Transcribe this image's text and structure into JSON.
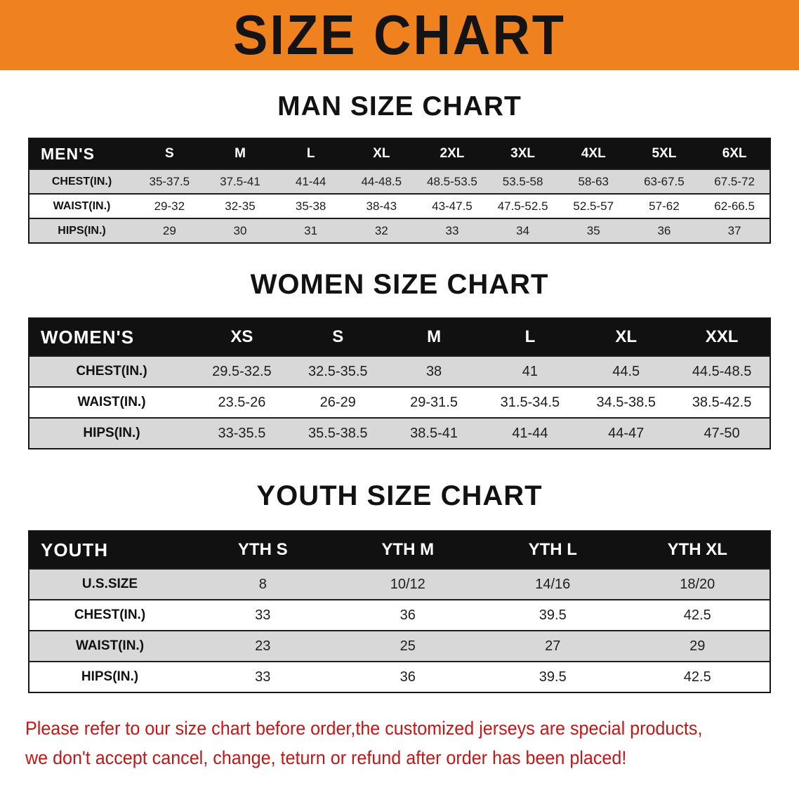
{
  "banner": {
    "title": "SIZE CHART"
  },
  "colors": {
    "banner_bg": "#f0811f",
    "header_bg": "#111111",
    "row_shade": "#d8d8d8",
    "note_red": "#c31717"
  },
  "sections": [
    {
      "key": "men",
      "heading": "MAN SIZE CHART",
      "table": {
        "corner_label": "MEN'S",
        "columns": [
          "S",
          "M",
          "L",
          "XL",
          "2XL",
          "3XL",
          "4XL",
          "5XL",
          "6XL"
        ],
        "rows": [
          {
            "label": "CHEST(IN.)",
            "values": [
              "35-37.5",
              "37.5-41",
              "41-44",
              "44-48.5",
              "48.5-53.5",
              "53.5-58",
              "58-63",
              "63-67.5",
              "67.5-72"
            ]
          },
          {
            "label": "WAIST(IN.)",
            "values": [
              "29-32",
              "32-35",
              "35-38",
              "38-43",
              "43-47.5",
              "47.5-52.5",
              "52.5-57",
              "57-62",
              "62-66.5"
            ]
          },
          {
            "label": "HIPS(IN.)",
            "values": [
              "29",
              "30",
              "31",
              "32",
              "33",
              "34",
              "35",
              "36",
              "37"
            ]
          }
        ]
      }
    },
    {
      "key": "women",
      "heading": "WOMEN SIZE CHART",
      "table": {
        "corner_label": "WOMEN'S",
        "columns": [
          "XS",
          "S",
          "M",
          "L",
          "XL",
          "XXL"
        ],
        "rows": [
          {
            "label": "CHEST(IN.)",
            "values": [
              "29.5-32.5",
              "32.5-35.5",
              "38",
              "41",
              "44.5",
              "44.5-48.5"
            ]
          },
          {
            "label": "WAIST(IN.)",
            "values": [
              "23.5-26",
              "26-29",
              "29-31.5",
              "31.5-34.5",
              "34.5-38.5",
              "38.5-42.5"
            ]
          },
          {
            "label": "HIPS(IN.)",
            "values": [
              "33-35.5",
              "35.5-38.5",
              "38.5-41",
              "41-44",
              "44-47",
              "47-50"
            ]
          }
        ]
      }
    },
    {
      "key": "youth",
      "heading": "YOUTH SIZE CHART",
      "table": {
        "corner_label": "YOUTH",
        "columns": [
          "YTH S",
          "YTH M",
          "YTH L",
          "YTH XL"
        ],
        "rows": [
          {
            "label": "U.S.SIZE",
            "values": [
              "8",
              "10/12",
              "14/16",
              "18/20"
            ]
          },
          {
            "label": "CHEST(IN.)",
            "values": [
              "33",
              "36",
              "39.5",
              "42.5"
            ]
          },
          {
            "label": "WAIST(IN.)",
            "values": [
              "23",
              "25",
              "27",
              "29"
            ]
          },
          {
            "label": "HIPS(IN.)",
            "values": [
              "33",
              "36",
              "39.5",
              "42.5"
            ]
          }
        ]
      }
    }
  ],
  "footer_note": {
    "line1": "Please refer to our size chart before order,the customized jerseys are special products,",
    "line2": "we don't accept cancel, change, teturn or refund after order has been placed!"
  },
  "chart_data": [
    {
      "type": "table",
      "title": "MAN SIZE CHART",
      "columns": [
        "MEN'S",
        "S",
        "M",
        "L",
        "XL",
        "2XL",
        "3XL",
        "4XL",
        "5XL",
        "6XL"
      ],
      "rows": [
        [
          "CHEST(IN.)",
          "35-37.5",
          "37.5-41",
          "41-44",
          "44-48.5",
          "48.5-53.5",
          "53.5-58",
          "58-63",
          "63-67.5",
          "67.5-72"
        ],
        [
          "WAIST(IN.)",
          "29-32",
          "32-35",
          "35-38",
          "38-43",
          "43-47.5",
          "47.5-52.5",
          "52.5-57",
          "57-62",
          "62-66.5"
        ],
        [
          "HIPS(IN.)",
          "29",
          "30",
          "31",
          "32",
          "33",
          "34",
          "35",
          "36",
          "37"
        ]
      ]
    },
    {
      "type": "table",
      "title": "WOMEN SIZE CHART",
      "columns": [
        "WOMEN'S",
        "XS",
        "S",
        "M",
        "L",
        "XL",
        "XXL"
      ],
      "rows": [
        [
          "CHEST(IN.)",
          "29.5-32.5",
          "32.5-35.5",
          "38",
          "41",
          "44.5",
          "44.5-48.5"
        ],
        [
          "WAIST(IN.)",
          "23.5-26",
          "26-29",
          "29-31.5",
          "31.5-34.5",
          "34.5-38.5",
          "38.5-42.5"
        ],
        [
          "HIPS(IN.)",
          "33-35.5",
          "35.5-38.5",
          "38.5-41",
          "41-44",
          "44-47",
          "47-50"
        ]
      ]
    },
    {
      "type": "table",
      "title": "YOUTH SIZE CHART",
      "columns": [
        "YOUTH",
        "YTH S",
        "YTH M",
        "YTH L",
        "YTH XL"
      ],
      "rows": [
        [
          "U.S.SIZE",
          "8",
          "10/12",
          "14/16",
          "18/20"
        ],
        [
          "CHEST(IN.)",
          "33",
          "36",
          "39.5",
          "42.5"
        ],
        [
          "WAIST(IN.)",
          "23",
          "25",
          "27",
          "29"
        ],
        [
          "HIPS(IN.)",
          "33",
          "36",
          "39.5",
          "42.5"
        ]
      ]
    }
  ]
}
